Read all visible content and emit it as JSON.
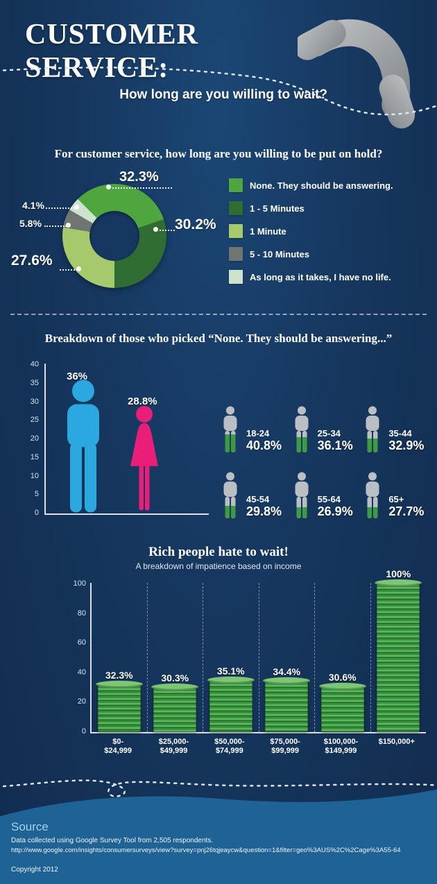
{
  "header": {
    "title": "CUSTOMER SERVICE:",
    "subtitle": "How long are you willing to wait?"
  },
  "colors": {
    "background": "#16375F",
    "footer_background": "#1F6296",
    "male_blue": "#2AA8DF",
    "female_pink": "#E81E78",
    "money_green": "#388E3C"
  },
  "hold_section": {
    "question": "For customer service, how long are you willing to be put on hold?",
    "labels": {
      "none": "32.3%",
      "one_to_five": "30.2%",
      "one_minute": "27.6%",
      "five_to_ten": "5.8%",
      "as_long": "4.1%"
    },
    "legend": [
      {
        "label": "None. They should be answering.",
        "color": "#4FA53E"
      },
      {
        "label": "1 - 5 Minutes",
        "color": "#2F6D33"
      },
      {
        "label": "1 Minute",
        "color": "#A6C96C"
      },
      {
        "label": "5 - 10 Minutes",
        "color": "#6F7672"
      },
      {
        "label": "As long as it takes, I have no life.",
        "color": "#CDE3CB"
      }
    ]
  },
  "breakdown_section": {
    "title": "Breakdown of those who picked “None. They should be answering...”",
    "gender": {
      "male_label": "36%",
      "female_label": "28.8%",
      "y_ticks": [
        "40",
        "35",
        "30",
        "25",
        "20",
        "15",
        "10",
        "5",
        "0"
      ]
    },
    "ages": [
      {
        "range": "18-24",
        "pct": "40.8%"
      },
      {
        "range": "25-34",
        "pct": "36.1%"
      },
      {
        "range": "35-44",
        "pct": "32.9%"
      },
      {
        "range": "45-54",
        "pct": "29.8%"
      },
      {
        "range": "55-64",
        "pct": "26.9%"
      },
      {
        "range": "65+",
        "pct": "27.7%"
      }
    ]
  },
  "income_section": {
    "title": "Rich people hate to wait!",
    "subtitle": "A breakdown of impatience based on income",
    "y_ticks": [
      "100",
      "80",
      "60",
      "40",
      "20",
      "0"
    ],
    "bars": [
      {
        "label": "$0-\n$24,999",
        "pct": "32.3%"
      },
      {
        "label": "$25,000-\n$49,999",
        "pct": "30.3%"
      },
      {
        "label": "$50,000-\n$74,999",
        "pct": "35.1%"
      },
      {
        "label": "$75,000-\n$99,999",
        "pct": "34.4%"
      },
      {
        "label": "$100,000-\n$149,999",
        "pct": "30.6%"
      },
      {
        "label": "$150,000+",
        "pct": "100%"
      }
    ]
  },
  "footer": {
    "source_label": "Source",
    "line1": "Data collected using Google Survey Tool from 2,505 respondents.",
    "line2": "http://www.google.com/insights/consumersurveys/view?survey=pnj26tqjeaycw&question=1&filter=geo%3AUS%2C%2Cage%3A55-64",
    "copyright": "Copyright 2012"
  },
  "chart_data": [
    {
      "type": "pie",
      "title": "For customer service, how long are you willing to be put on hold?",
      "labels": [
        "None. They should be answering.",
        "1 - 5 Minutes",
        "1 Minute",
        "5 - 10 Minutes",
        "As long as it takes, I have no life."
      ],
      "values": [
        32.3,
        30.2,
        27.6,
        5.8,
        4.1
      ],
      "colors": [
        "#4FA53E",
        "#2F6D33",
        "#A6C96C",
        "#6F7672",
        "#CDE3CB"
      ],
      "donut": true,
      "legend_position": "right"
    },
    {
      "type": "bar",
      "title": "Breakdown of those who picked \"None\" by gender",
      "categories": [
        "Male",
        "Female"
      ],
      "values": [
        36,
        28.8
      ],
      "colors": [
        "#2AA8DF",
        "#E81E78"
      ],
      "ylim": [
        0,
        40
      ],
      "ylabel": ""
    },
    {
      "type": "pictogram",
      "title": "Breakdown of those who picked \"None\" by age",
      "categories": [
        "18-24",
        "25-34",
        "35-44",
        "45-54",
        "55-64",
        "65+"
      ],
      "values": [
        40.8,
        36.1,
        32.9,
        29.8,
        26.9,
        27.7
      ]
    },
    {
      "type": "bar",
      "title": "Rich people hate to wait!",
      "subtitle": "A breakdown of impatience based on income",
      "categories": [
        "$0-$24,999",
        "$25,000-$49,999",
        "$50,000-$74,999",
        "$75,000-$99,999",
        "$100,000-$149,999",
        "$150,000+"
      ],
      "values": [
        32.3,
        30.3,
        35.1,
        34.4,
        30.6,
        100
      ],
      "ylim": [
        0,
        100
      ],
      "grid": "dashed-vertical"
    }
  ]
}
